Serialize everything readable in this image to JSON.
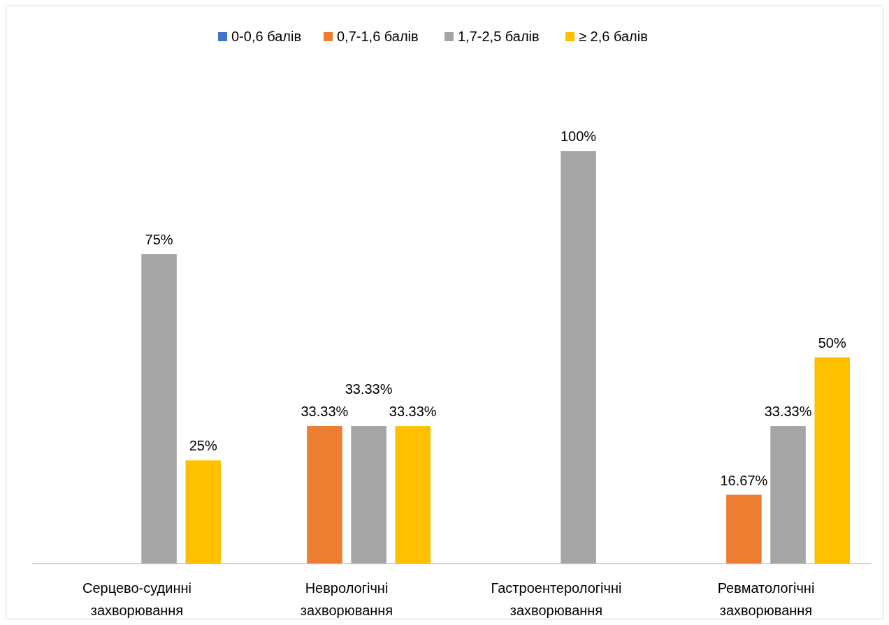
{
  "chart_data": {
    "type": "bar",
    "categories": [
      "Серцево-судинні захворювання",
      "Неврологічні захворювання",
      "Гастроентерологічні захворювання",
      "Ревматологічні захворювання"
    ],
    "series": [
      {
        "name": "0-0,6 балів",
        "color": "#4472c4",
        "values": [
          null,
          null,
          null,
          null
        ],
        "value_labels": [
          null,
          null,
          null,
          null
        ]
      },
      {
        "name": "0,7-1,6 балів",
        "color": "#ed7d31",
        "values": [
          null,
          33.33,
          null,
          16.67
        ],
        "value_labels": [
          null,
          "33.33%",
          null,
          "16.67%"
        ]
      },
      {
        "name": "1,7-2,5 балів",
        "color": "#a5a5a5",
        "values": [
          75,
          33.33,
          100,
          33.33
        ],
        "value_labels": [
          "75%",
          "33.33%",
          "100%",
          "33.33%"
        ]
      },
      {
        "name": "≥ 2,6 балів",
        "color": "#ffc000",
        "values": [
          25,
          33.33,
          null,
          50
        ],
        "value_labels": [
          "25%",
          "33.33%",
          null,
          "50%"
        ]
      }
    ],
    "legend": "top"
  }
}
